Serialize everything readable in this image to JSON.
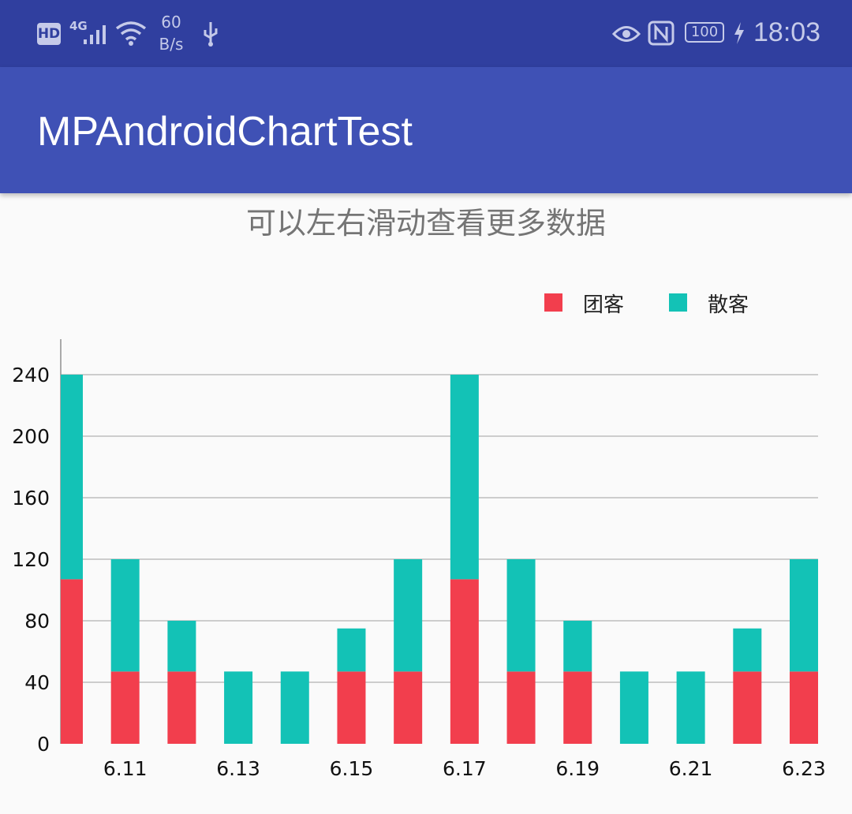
{
  "status_bar": {
    "hd": "HD",
    "network": "4G",
    "speed_value": "60",
    "speed_unit": "B/s",
    "battery": "100",
    "time": "18:03",
    "icons": [
      "signal-icon",
      "wifi-icon",
      "usb-icon",
      "eye-icon",
      "nfc-icon",
      "battery-icon",
      "charging-icon"
    ]
  },
  "app_bar": {
    "title": "MPAndroidChartTest"
  },
  "hint_text": "可以左右滑动查看更多数据",
  "colors": {
    "primary_dark": "#303f9f",
    "primary": "#3f51b5",
    "series_tuan": "#f23e4d",
    "series_san": "#13c2b6"
  },
  "chart_data": {
    "type": "bar",
    "stacked": true,
    "x": [
      6.1,
      6.11,
      6.12,
      6.13,
      6.14,
      6.15,
      6.16,
      6.17,
      6.18,
      6.19,
      6.2,
      6.21,
      6.22,
      6.23
    ],
    "xtick_labels": [
      "6.11",
      "6.13",
      "6.15",
      "6.17",
      "6.19",
      "6.21",
      "6.23"
    ],
    "xtick_values": [
      6.11,
      6.13,
      6.15,
      6.17,
      6.19,
      6.21,
      6.23
    ],
    "series": [
      {
        "name": "团客",
        "color": "#f23e4d",
        "values": [
          107,
          47,
          47,
          0,
          0,
          47,
          47,
          107,
          47,
          47,
          0,
          0,
          47,
          47
        ]
      },
      {
        "name": "散客",
        "color": "#13c2b6",
        "values": [
          133,
          73,
          33,
          47,
          47,
          28,
          73,
          133,
          73,
          33,
          47,
          47,
          28,
          73
        ]
      }
    ],
    "yticks": [
      0,
      40,
      80,
      120,
      160,
      200,
      240
    ],
    "ylim": [
      0,
      240
    ],
    "grid": "horizontal",
    "legend": "top-right"
  }
}
